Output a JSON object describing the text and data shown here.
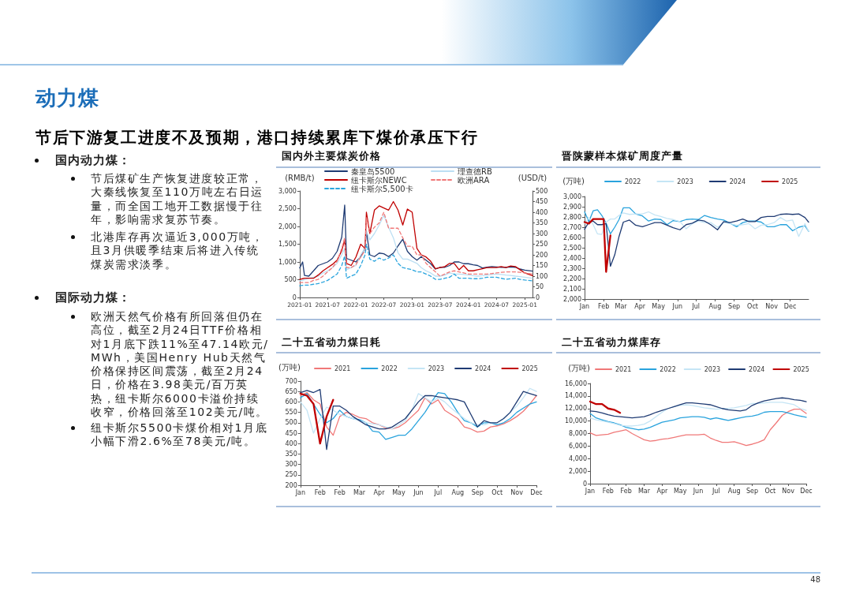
{
  "chart_data": [
    {
      "type": "other",
      "title": "动力煤",
      "subtitle": "节后下游复工进度不及预期，港口持续累库下煤价承压下行",
      "annotations": [
        "国内动力煤：",
        "节后煤矿生产恢复进度较正常，大秦线恢复至110万吨左右日运量，而全国工地开工数据慢于往年，影响需求复苏节奏。",
        "北港库存再次逼近3,000万吨，且3月供暖季结束后将进入传统煤炭需求淡季。",
        "国际动力煤：",
        "欧洲天然气价格有所回落但仍在高位，截至2月24日TTF价格相对1月底下跌11%至47.14欧元/MWh，美国Henry Hub天然气价格保持区间震荡，截至2月24日，价格在3.98美元/百万英热，纽卡斯尔6000卡溢价持续收窄，价格回落至102美元/吨。",
        "纽卡斯尔5500卡煤价相对1月底小幅下滑2.6%至78美元/吨。",
        "48"
      ]
    },
    {
      "type": "line",
      "title": "国内外主要煤炭价格",
      "ylabel": "(RMB/t)",
      "y2label": "(USD/t)",
      "legend": "top",
      "marker": "none",
      "x": [
        "2021-01",
        "2021-01-20",
        "2021-02",
        "2021-03",
        "2021-04",
        "2021-05",
        "2021-06",
        "2021-07",
        "2021-08",
        "2021-09",
        "2021-10",
        "2021-10-20",
        "2021-11",
        "2021-12",
        "2022-01",
        "2022-02",
        "2022-03",
        "2022-03-10",
        "2022-04",
        "2022-05",
        "2022-06",
        "2022-07",
        "2022-08",
        "2022-09",
        "2022-10",
        "2022-11",
        "2022-12",
        "2023-01",
        "2023-02",
        "2023-03",
        "2023-04",
        "2023-05",
        "2023-06",
        "2023-07",
        "2023-08",
        "2023-09",
        "2023-10",
        "2023-11",
        "2023-12",
        "2024-01",
        "2024-02",
        "2024-03",
        "2024-04",
        "2024-05",
        "2024-06",
        "2024-07",
        "2024-08",
        "2024-09",
        "2024-10",
        "2024-11",
        "2024-12",
        "2025-01",
        "2025-02-20"
      ],
      "xlim": [
        "2021-01",
        "2025-02-20"
      ],
      "xticks": [
        "2021-01",
        "2021-07",
        "2022-01",
        "2022-07",
        "2023-01",
        "2023-07",
        "2024-01",
        "2024-07",
        "2025-01"
      ],
      "ylim": [
        0,
        3000
      ],
      "yticks": [
        0,
        500,
        {
          "value": 1000,
          "label": "1,000"
        },
        {
          "value": 1500,
          "label": "1,500"
        },
        {
          "value": 2000,
          "label": "2,000"
        },
        {
          "value": 2500,
          "label": "2,500"
        },
        {
          "value": 3000,
          "label": "3,000"
        }
      ],
      "y2lim": [
        0,
        500
      ],
      "y2ticks": [
        0,
        50,
        100,
        150,
        200,
        250,
        300,
        350,
        400,
        450,
        500
      ],
      "series": [
        {
          "name": "秦皇岛5500",
          "color": "#1f3b73",
          "values": [
            830,
            1000,
            620,
            600,
            750,
            900,
            950,
            1000,
            1100,
            1300,
            1700,
            2600,
            1100,
            1050,
            1000,
            1150,
            1400,
            1850,
            1200,
            1150,
            1250,
            1230,
            1150,
            1250,
            1450,
            1640,
            1300,
            1150,
            1050,
            1150,
            1050,
            950,
            800,
            850,
            850,
            900,
            1000,
            1000,
            950,
            950,
            920,
            900,
            830,
            850,
            870,
            860,
            850,
            850,
            860,
            850,
            800,
            770,
            740
          ]
        },
        {
          "name": "理查德RB",
          "color": "#bcdff3",
          "axis": "y2",
          "values": [
            78,
            80,
            84,
            90,
            95,
            100,
            115,
            125,
            140,
            160,
            200,
            230,
            130,
            140,
            150,
            200,
            230,
            315,
            270,
            300,
            340,
            385,
            330,
            280,
            210,
            180,
            180,
            170,
            160,
            140,
            125,
            115,
            100,
            100,
            105,
            115,
            110,
            110,
            108,
            105,
            102,
            100,
            102,
            105,
            108,
            110,
            108,
            105,
            103,
            100,
            98,
            95,
            90
          ]
        },
        {
          "name": "纽卡斯尔NEWC",
          "color": "#c00000",
          "axis": "y2",
          "values": [
            85,
            88,
            90,
            90,
            90,
            105,
            125,
            140,
            155,
            175,
            220,
            270,
            160,
            150,
            190,
            250,
            230,
            400,
            300,
            410,
            430,
            420,
            410,
            450,
            410,
            340,
            415,
            400,
            230,
            200,
            190,
            170,
            135,
            140,
            145,
            160,
            160,
            130,
            150,
            125,
            125,
            130,
            135,
            140,
            140,
            140,
            145,
            140,
            148,
            145,
            130,
            115,
            102
          ]
        },
        {
          "name": "欧洲ARA",
          "color": "#f07878",
          "axis": "y2",
          "line_style": "dashed",
          "values": [
            70,
            70,
            70,
            70,
            80,
            85,
            100,
            120,
            140,
            170,
            230,
            280,
            140,
            140,
            155,
            190,
            220,
            375,
            300,
            330,
            350,
            400,
            325,
            325,
            325,
            280,
            240,
            240,
            200,
            200,
            160,
            140,
            120,
            100,
            110,
            120,
            125,
            120,
            115,
            110,
            110,
            110,
            110,
            110,
            112,
            115,
            118,
            120,
            120,
            120,
            118,
            115,
            110
          ]
        },
        {
          "name": "纽卡斯尔5,500卡",
          "color": "#2aa5de",
          "axis": "y2",
          "line_style": "dashed",
          "values": [
            55,
            57,
            58,
            58,
            62,
            65,
            72,
            80,
            95,
            110,
            150,
            195,
            90,
            100,
            110,
            150,
            200,
            250,
            180,
            170,
            185,
            175,
            185,
            200,
            160,
            140,
            135,
            130,
            120,
            120,
            110,
            100,
            85,
            85,
            90,
            95,
            110,
            90,
            90,
            90,
            88,
            88,
            90,
            95,
            95,
            95,
            90,
            85,
            88,
            90,
            85,
            82,
            78
          ]
        }
      ]
    },
    {
      "type": "line",
      "title": "晋陕蒙样本煤矿周度产量",
      "ylabel": "(万吨)",
      "legend": "top",
      "marker": "none",
      "x": [
        "--01-01",
        "--01-08",
        "--01-15",
        "--01-22",
        "--01-29",
        "--02-05",
        "--02-12",
        "--02-19",
        "--02-26",
        "--03-05",
        "--03-15",
        "--03-25",
        "--04-05",
        "--04-15",
        "--04-25",
        "--05-05",
        "--05-15",
        "--05-25",
        "--06-05",
        "--06-15",
        "--06-25",
        "--07-05",
        "--07-15",
        "--07-25",
        "--08-05",
        "--08-15",
        "--08-25",
        "--09-05",
        "--09-15",
        "--09-25",
        "--10-05",
        "--10-15",
        "--10-25",
        "--11-05",
        "--11-15",
        "--11-25",
        "--12-05",
        "--12-15",
        "--12-25",
        "--12-31"
      ],
      "xlim": [
        "--01-01",
        "--12-31"
      ],
      "xticks": [
        {
          "value": "--01-01",
          "label": "Jan"
        },
        {
          "value": "--02-01",
          "label": "Feb"
        },
        {
          "value": "--03-01",
          "label": "Mar"
        },
        {
          "value": "--04-01",
          "label": "Apr"
        },
        {
          "value": "--05-01",
          "label": "May"
        },
        {
          "value": "--06-01",
          "label": "Jun"
        },
        {
          "value": "--07-01",
          "label": "Jul"
        },
        {
          "value": "--08-01",
          "label": "Aug"
        },
        {
          "value": "--09-01",
          "label": "Sep"
        },
        {
          "value": "--10-01",
          "label": "Oct"
        },
        {
          "value": "--11-01",
          "label": "Nov"
        },
        {
          "value": "--12-01",
          "label": "Dec"
        }
      ],
      "ylim": [
        2000,
        3000
      ],
      "yticks": [
        {
          "value": 2000,
          "label": "2,000"
        },
        {
          "value": 2100,
          "label": "2,100"
        },
        {
          "value": 2200,
          "label": "2,200"
        },
        {
          "value": 2300,
          "label": "2,300"
        },
        {
          "value": 2400,
          "label": "2,400"
        },
        {
          "value": 2500,
          "label": "2,500"
        },
        {
          "value": 2600,
          "label": "2,600"
        },
        {
          "value": 2700,
          "label": "2,700"
        },
        {
          "value": 2800,
          "label": "2,800"
        },
        {
          "value": 2900,
          "label": "2,900"
        },
        {
          "value": 3000,
          "label": "3,000"
        }
      ],
      "series": [
        {
          "name": "2022",
          "color": "#29a3dd",
          "values": [
            2850,
            2755,
            2860,
            2870,
            2815,
            2740,
            2635,
            2700,
            2775,
            2890,
            2890,
            2830,
            2810,
            2760,
            2780,
            2775,
            2725,
            2765,
            2755,
            2775,
            2780,
            2775,
            2815,
            2795,
            2780,
            2770,
            2740,
            2705,
            2745,
            2760,
            2760,
            2750,
            2705,
            2705,
            2725,
            2725,
            2665,
            2700,
            2715,
            2660
          ]
        },
        {
          "name": "2023",
          "color": "#c5e5f5",
          "values": [
            2735,
            2795,
            2725,
            2635,
            2630,
            2750,
            2780,
            2780,
            2815,
            2840,
            2825,
            2830,
            2830,
            2850,
            2820,
            2805,
            2785,
            2775,
            2755,
            2685,
            2735,
            2760,
            2745,
            2745,
            2700,
            2745,
            2735,
            2720,
            2725,
            2735,
            2685,
            2720,
            2725,
            2745,
            2795,
            2760,
            2770,
            2610,
            2735,
            2660
          ]
        },
        {
          "name": "2024",
          "color": "#1f3b73",
          "values": [
            2680,
            2750,
            2760,
            2725,
            2725,
            2735,
            2320,
            2430,
            2610,
            2750,
            2770,
            2720,
            2705,
            2725,
            2745,
            2745,
            2720,
            2695,
            2675,
            2725,
            2740,
            2770,
            2760,
            2725,
            2675,
            2755,
            2745,
            2760,
            2780,
            2755,
            2755,
            2795,
            2805,
            2805,
            2825,
            2830,
            2825,
            2830,
            2795,
            2750
          ]
        },
        {
          "name": "2025",
          "color": "#c00000",
          "x": [
            "--01-01",
            "--01-08",
            "--01-15",
            "--01-22",
            "--01-29",
            "--02-01",
            "--02-05",
            "--02-12"
          ],
          "values": [
            2750,
            2735,
            2780,
            2780,
            2780,
            2780,
            2265,
            2620
          ]
        }
      ]
    },
    {
      "type": "line",
      "title": "二十五省动力煤日耗",
      "ylabel": "(万吨)",
      "legend": "top",
      "marker": "none",
      "categories": [
        "Jan",
        null,
        null,
        "Feb",
        null,
        null,
        "Feb",
        null,
        null,
        "Mar",
        null,
        null,
        "Apr",
        null,
        null,
        "May",
        null,
        null,
        "Jun",
        null,
        null,
        "Jul",
        null,
        null,
        "Aug",
        null,
        null,
        "Sep",
        null,
        null,
        "Oct",
        null,
        null,
        "Nov",
        null,
        null,
        "Dec"
      ],
      "ylim": [
        200,
        700
      ],
      "yticks": [
        200,
        250,
        300,
        350,
        400,
        450,
        500,
        550,
        600,
        650,
        700
      ],
      "series": [
        {
          "name": "2021",
          "color": "#f07878",
          "values": [
            630,
            645,
            610,
            590,
            480,
            440,
            530,
            550,
            540,
            525,
            520,
            500,
            490,
            475,
            470,
            480,
            500,
            530,
            560,
            620,
            590,
            610,
            560,
            540,
            520,
            480,
            470,
            455,
            460,
            480,
            485,
            495,
            510,
            530,
            555,
            590,
            630
          ]
        },
        {
          "name": "2022",
          "color": "#29a3dd",
          "values": [
            620,
            640,
            590,
            540,
            500,
            520,
            560,
            530,
            520,
            515,
            500,
            460,
            455,
            420,
            430,
            440,
            440,
            470,
            510,
            550,
            600,
            645,
            640,
            600,
            550,
            510,
            500,
            480,
            500,
            500,
            490,
            500,
            520,
            550,
            570,
            590,
            600
          ]
        },
        {
          "name": "2023",
          "color": "#c5e5f5",
          "values": [
            600,
            560,
            450,
            520,
            575,
            560,
            540,
            530,
            520,
            510,
            500,
            495,
            490,
            480,
            470,
            490,
            510,
            560,
            640,
            620,
            600,
            620,
            600,
            570,
            545,
            520,
            500,
            490,
            490,
            500,
            500,
            520,
            550,
            580,
            620,
            665,
            650
          ]
        },
        {
          "name": "2024",
          "color": "#1f3b73",
          "values": [
            645,
            655,
            645,
            660,
            372,
            580,
            580,
            560,
            530,
            510,
            490,
            480,
            470,
            470,
            480,
            500,
            520,
            560,
            600,
            630,
            630,
            625,
            620,
            615,
            610,
            600,
            540,
            480,
            510,
            500,
            500,
            520,
            550,
            600,
            650,
            640,
            630
          ]
        },
        {
          "name": "2025",
          "color": "#c00000",
          "values": [
            640,
            630,
            590,
            400,
            530,
            610,
            null,
            null,
            null,
            null,
            null,
            null,
            null,
            null,
            null,
            null,
            null,
            null,
            null,
            null,
            null,
            null,
            null,
            null,
            null,
            null,
            null,
            null,
            null,
            null,
            null,
            null,
            null,
            null,
            null,
            null,
            null
          ]
        }
      ]
    },
    {
      "type": "line",
      "title": "二十五省动力煤库存",
      "ylabel": "(万吨)",
      "legend": "top",
      "marker": "none",
      "categories": [
        "Jan",
        null,
        null,
        "Feb",
        null,
        null,
        "Feb",
        null,
        null,
        "Mar",
        null,
        null,
        "Apr",
        null,
        null,
        "May",
        null,
        null,
        "Jun",
        null,
        null,
        "Jul",
        null,
        null,
        "Aug",
        null,
        null,
        "Sep",
        null,
        null,
        "Oct",
        null,
        null,
        "Nov",
        null,
        null,
        "Dec"
      ],
      "ylim": [
        0,
        16000
      ],
      "yticks": [
        0,
        {
          "value": 2000,
          "label": "2,000"
        },
        {
          "value": 4000,
          "label": "4,000"
        },
        {
          "value": 6000,
          "label": "6,000"
        },
        {
          "value": 8000,
          "label": "8,000"
        },
        {
          "value": 10000,
          "label": "10,000"
        },
        {
          "value": 12000,
          "label": "12,000"
        },
        {
          "value": 14000,
          "label": "14,000"
        },
        {
          "value": 16000,
          "label": "16,000"
        }
      ],
      "series": [
        {
          "name": "2021",
          "color": "#f07878",
          "values": [
            8100,
            7700,
            7800,
            7900,
            8200,
            8400,
            8600,
            8000,
            7500,
            7000,
            6800,
            6900,
            7100,
            7200,
            7400,
            7600,
            7800,
            7800,
            7800,
            7900,
            7300,
            6900,
            6600,
            6600,
            6700,
            6400,
            6100,
            6300,
            6600,
            7000,
            8600,
            9700,
            10900,
            11500,
            11900,
            11900,
            11200
          ]
        },
        {
          "name": "2022",
          "color": "#29a3dd",
          "values": [
            11200,
            10500,
            10200,
            9900,
            9700,
            9400,
            9000,
            8800,
            8600,
            8700,
            9000,
            9400,
            9800,
            10000,
            10200,
            10500,
            10600,
            10700,
            10700,
            10600,
            10300,
            10500,
            10300,
            10100,
            10300,
            10500,
            10700,
            10800,
            11000,
            11400,
            11500,
            11500,
            11500,
            11300,
            11000,
            10800,
            10600
          ]
        },
        {
          "name": "2023",
          "color": "#c5e5f5",
          "values": [
            10500,
            10200,
            10000,
            9800,
            9600,
            9300,
            9200,
            9200,
            9300,
            9500,
            10000,
            10700,
            11400,
            12000,
            12300,
            12500,
            12600,
            12500,
            12300,
            12100,
            12000,
            11900,
            12000,
            12000,
            12100,
            12300,
            12500,
            12800,
            12800,
            12900,
            13000,
            13000,
            13000,
            12800,
            12600,
            12000,
            11700
          ]
        },
        {
          "name": "2024",
          "color": "#1f3b73",
          "values": [
            11600,
            11500,
            11300,
            11000,
            10800,
            10700,
            10600,
            10500,
            10600,
            10700,
            11000,
            11400,
            11700,
            12000,
            12300,
            12600,
            12900,
            12900,
            12800,
            12700,
            12600,
            12300,
            12000,
            11800,
            11700,
            11600,
            11800,
            12500,
            12900,
            13200,
            13400,
            13600,
            13700,
            13600,
            13400,
            13300,
            13100
          ]
        },
        {
          "name": "2025",
          "color": "#c00000",
          "values": [
            13100,
            12700,
            12700,
            12000,
            11800,
            11300,
            null,
            null,
            null,
            null,
            null,
            null,
            null,
            null,
            null,
            null,
            null,
            null,
            null,
            null,
            null,
            null,
            null,
            null,
            null,
            null,
            null,
            null,
            null,
            null,
            null,
            null,
            null,
            null,
            null,
            null,
            null
          ]
        }
      ]
    }
  ]
}
